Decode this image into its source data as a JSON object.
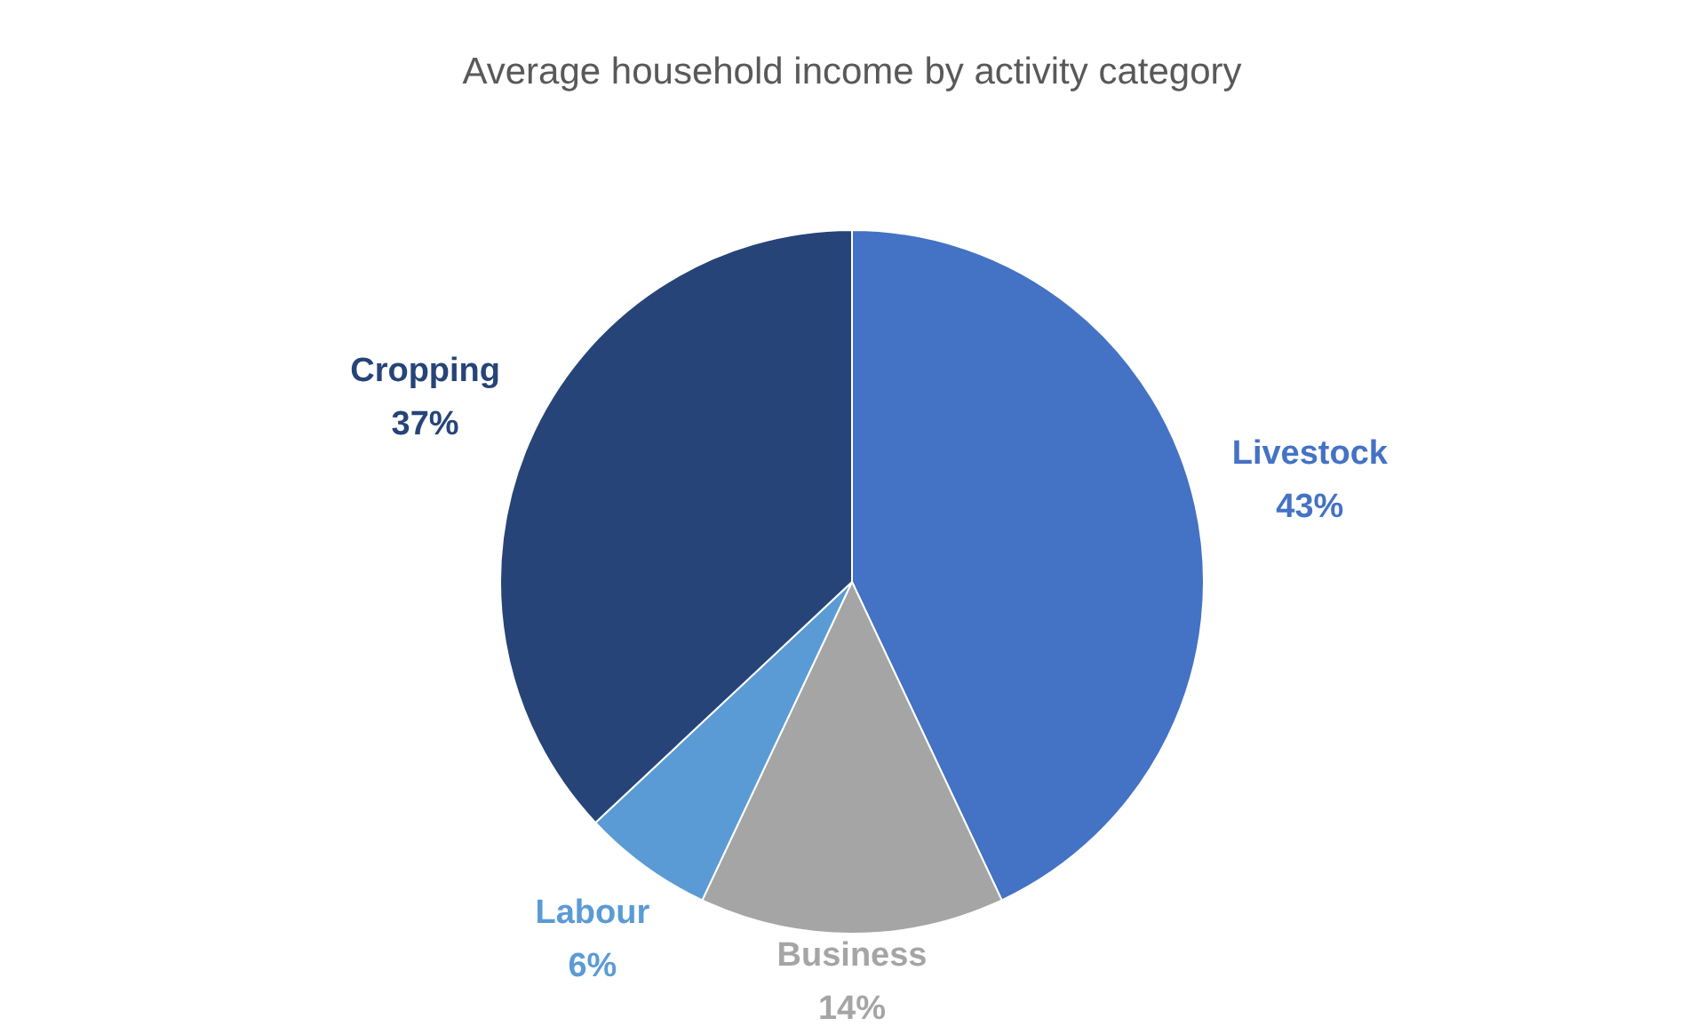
{
  "chart_data": {
    "type": "pie",
    "title": "Average household income by activity category",
    "categories": [
      "Livestock",
      "Business",
      "Labour",
      "Cropping"
    ],
    "values": [
      43,
      14,
      6,
      37
    ],
    "value_labels": [
      "43%",
      "14%",
      "6%",
      "37%"
    ],
    "colors": [
      "#4472c4",
      "#a5a5a5",
      "#5b9bd5",
      "#264478"
    ],
    "legend": false
  }
}
